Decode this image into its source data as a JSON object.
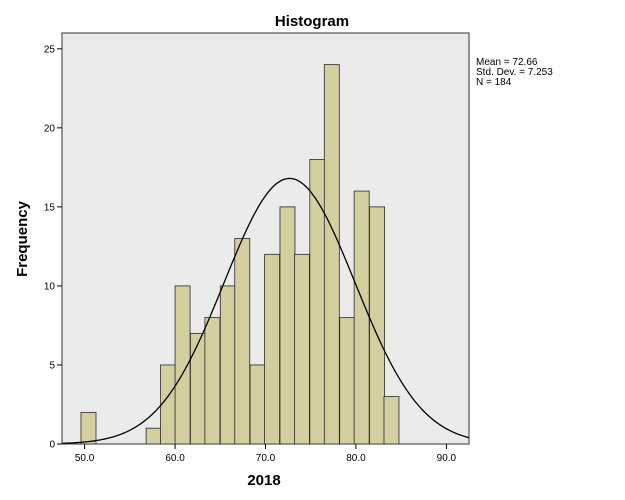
{
  "chart_data": {
    "type": "histogram",
    "title": "Histogram",
    "xlabel": "2018",
    "ylabel": "Frequency",
    "xlim": [
      47.5,
      92.5
    ],
    "ylim": [
      0,
      26
    ],
    "xticks": [
      50,
      60,
      70,
      80,
      90
    ],
    "xtick_labels": [
      "50.0",
      "60.0",
      "70.0",
      "80.0",
      "90.0"
    ],
    "yticks": [
      0,
      5,
      10,
      15,
      20,
      25
    ],
    "ytick_labels": [
      "0",
      "5",
      "10",
      "15",
      "20",
      "25"
    ],
    "bin_width": 1.66,
    "bins": [
      {
        "start": 49.6,
        "count": 2
      },
      {
        "start": 56.8,
        "count": 1
      },
      {
        "start": 58.4,
        "count": 5
      },
      {
        "start": 60.0,
        "count": 10
      },
      {
        "start": 61.7,
        "count": 7
      },
      {
        "start": 63.3,
        "count": 8
      },
      {
        "start": 65.0,
        "count": 10
      },
      {
        "start": 66.6,
        "count": 13
      },
      {
        "start": 68.3,
        "count": 5
      },
      {
        "start": 69.9,
        "count": 12
      },
      {
        "start": 71.6,
        "count": 15
      },
      {
        "start": 73.2,
        "count": 12
      },
      {
        "start": 74.9,
        "count": 18
      },
      {
        "start": 76.5,
        "count": 24
      },
      {
        "start": 78.2,
        "count": 8
      },
      {
        "start": 79.8,
        "count": 16
      },
      {
        "start": 81.5,
        "count": 15
      },
      {
        "start": 83.1,
        "count": 3
      }
    ],
    "normal_curve": {
      "mean": 72.66,
      "sd": 7.253,
      "n": 184
    },
    "stats_text": [
      "Mean = 72.66",
      "Std. Dev. = 7.253",
      "N = 184"
    ],
    "legend_position": "right",
    "colors": {
      "plot_bg": "#ebebeb",
      "bar_fill": "#d3cf9f",
      "bar_stroke": "#2a2a2a",
      "curve": "#000000"
    }
  }
}
